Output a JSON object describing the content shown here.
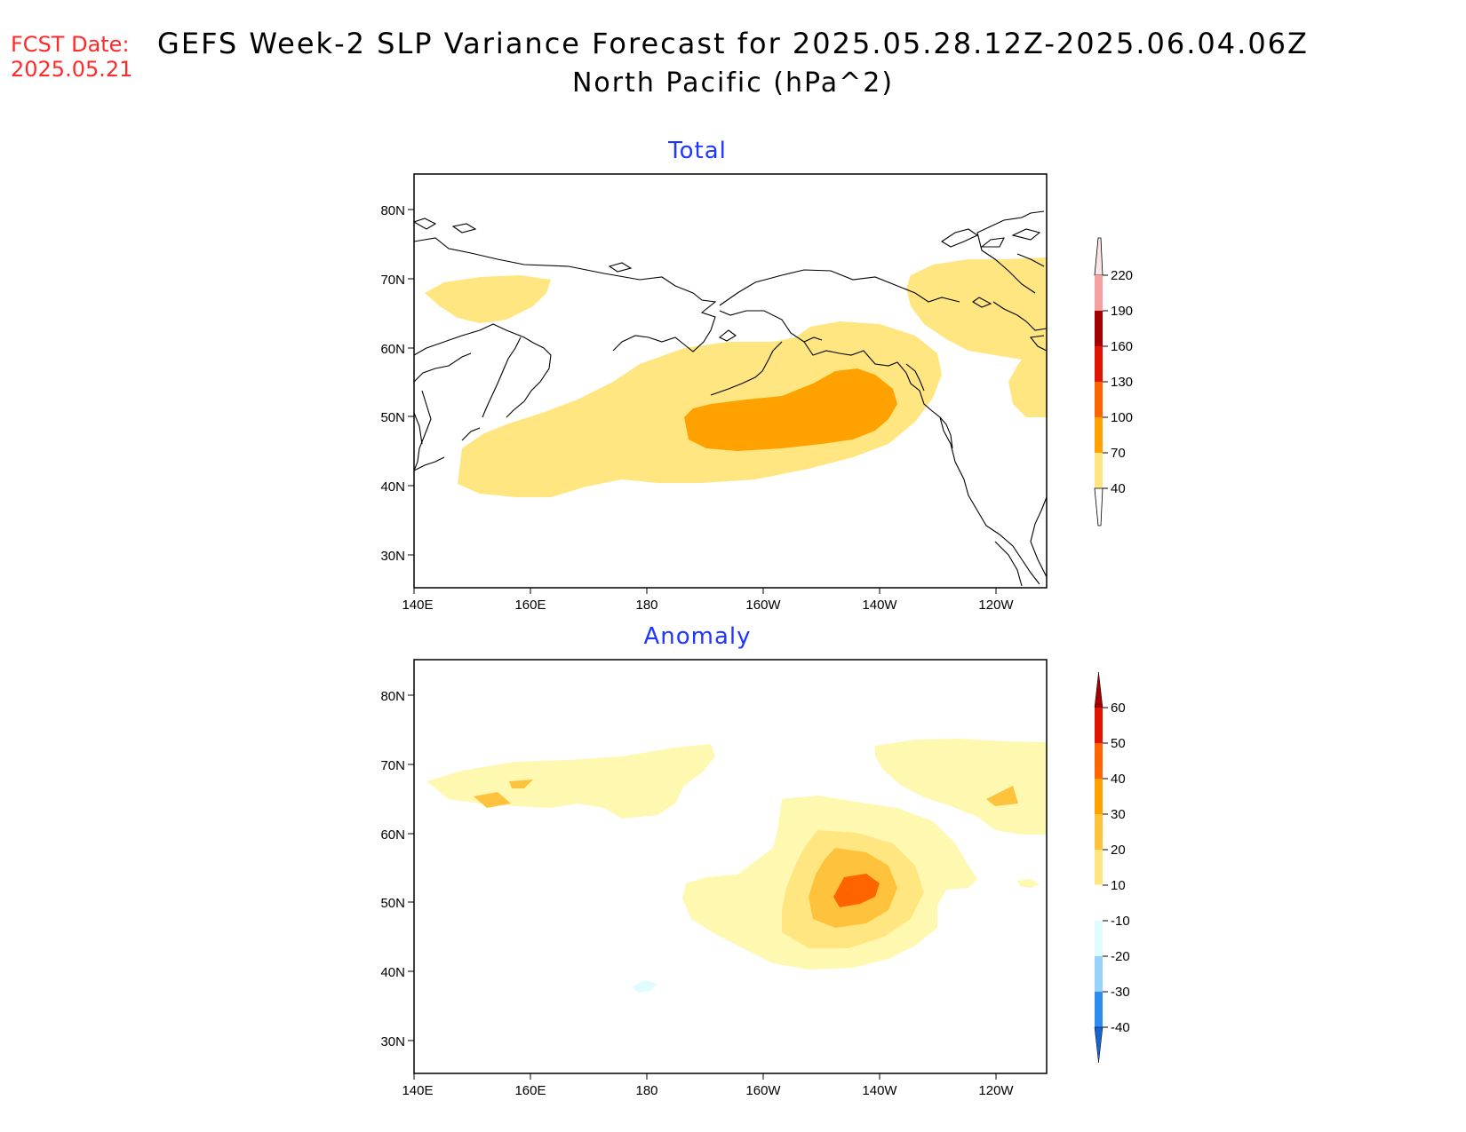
{
  "header": {
    "fcst_label": "FCST Date:",
    "fcst_date": "2025.05.21",
    "title": "GEFS Week-2 SLP Variance Forecast for 2025.05.28.12Z-2025.06.04.06Z",
    "subtitle": "North Pacific (hPa^2)"
  },
  "axes": {
    "lon_labels": [
      "140E",
      "160E",
      "180",
      "160W",
      "140W",
      "120W"
    ],
    "lat_labels": [
      "80N",
      "70N",
      "60N",
      "50N",
      "40N",
      "30N"
    ]
  },
  "panels": [
    {
      "title": "Total",
      "colorbar": {
        "labels": [
          "220",
          "190",
          "160",
          "130",
          "100",
          "70",
          "40"
        ],
        "colors": [
          "#f5a0a0",
          "#a50000",
          "#e01400",
          "#ff6400",
          "#ffa200",
          "#ffe680"
        ]
      },
      "regions": [
        {
          "level": "40-70",
          "color": "#ffe680",
          "desc": "broad North Pacific storm-track band, Japan to Gulf of Alaska"
        },
        {
          "level": "70-100",
          "color": "#ffa200",
          "desc": "core centered near 48-55N, 175W-135W"
        },
        {
          "level": "40-70",
          "color": "#ffe680",
          "desc": "Chukchi/East Siberian Sea"
        },
        {
          "level": "40-70",
          "color": "#ffe680",
          "desc": "Canadian Arctic and Hudson Bay region"
        }
      ]
    },
    {
      "title": "Anomaly",
      "colorbar": {
        "labels": [
          "60",
          "50",
          "40",
          "30",
          "20",
          "10",
          "-10",
          "-20",
          "-30",
          "-40"
        ],
        "colors": [
          "#a50000",
          "#e01400",
          "#ff6400",
          "#ffa200",
          "#ffc23c",
          "#ffe680",
          "#fff8b0",
          "#ffffff",
          "#e0fcff",
          "#96d2fa",
          "#2d8cf0",
          "#1464d2"
        ]
      },
      "regions": [
        {
          "level": "10-20",
          "color": "#fff8b0",
          "desc": "Gulf of Alaska and subpolar North Pacific"
        },
        {
          "level": "20-30",
          "color": "#ffe680",
          "desc": "ring around Gulf of Alaska maximum"
        },
        {
          "level": "30-40",
          "color": "#ffc23c",
          "desc": "Gulf of Alaska"
        },
        {
          "level": "40-50",
          "color": "#ff6400",
          "desc": "maximum near 52N 142W"
        },
        {
          "level": "-10--20",
          "color": "#e0fcff",
          "desc": "small negative patch near 37N 180"
        }
      ]
    }
  ]
}
